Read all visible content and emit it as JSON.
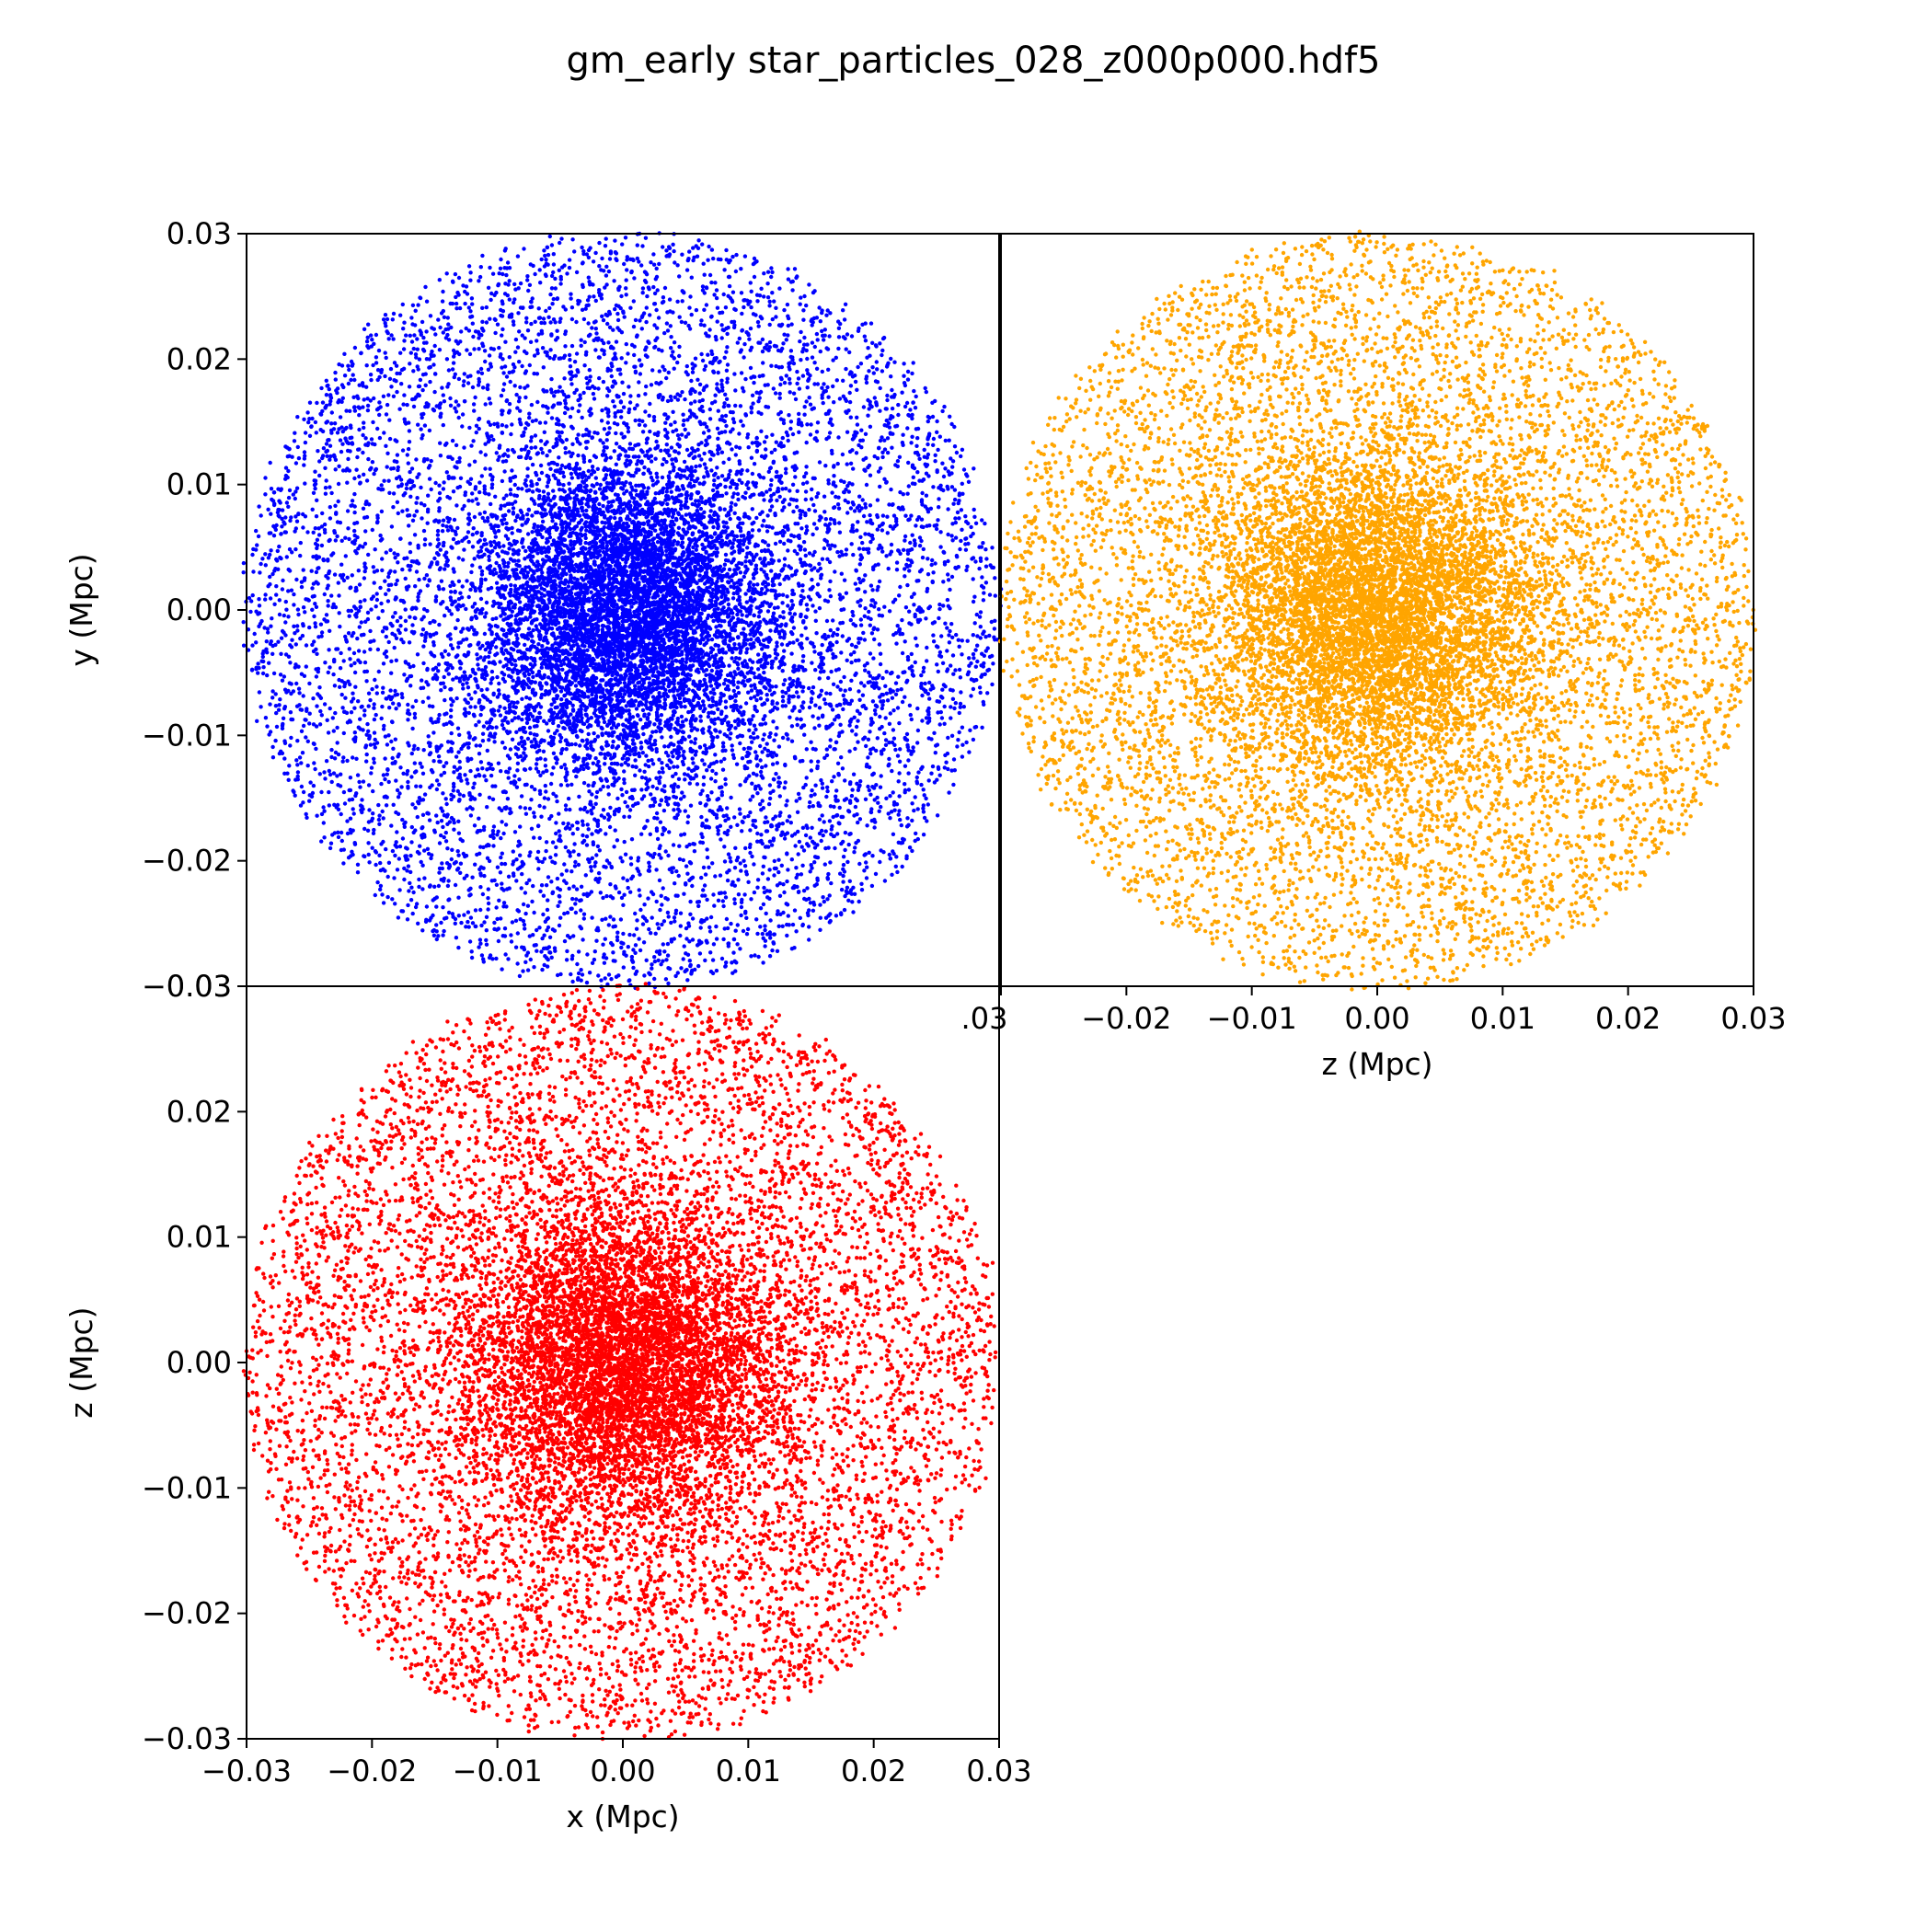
{
  "figure": {
    "title": "gm_early star_particles_028_z000p000.hdf5"
  },
  "chart_data": [
    {
      "type": "scatter",
      "panel": "top-left",
      "xlabel": "",
      "ylabel": "y (Mpc)",
      "xlim": [
        -0.03,
        0.03
      ],
      "ylim": [
        -0.03,
        0.03
      ],
      "x_ticks": [],
      "y_ticks": [
        "−0.03",
        "−0.02",
        "−0.01",
        "0.00",
        "0.01",
        "0.02",
        "0.03"
      ],
      "color": "#0000ff",
      "distribution": {
        "center": [
          0.0005,
          0.0
        ],
        "core_sigma": 0.006,
        "outer_radius": 0.03,
        "approx_points": 14000
      },
      "grid": false
    },
    {
      "type": "scatter",
      "panel": "top-right",
      "xlabel": "z (Mpc)",
      "ylabel": "",
      "xlim": [
        -0.03,
        0.03
      ],
      "ylim": [
        -0.03,
        0.03
      ],
      "x_ticks": [
        ".03",
        "−0.02",
        "−0.01",
        "0.00",
        "0.01",
        "0.02",
        "0.03"
      ],
      "y_ticks": [],
      "color": "#ffa500",
      "distribution": {
        "center": [
          0.0,
          0.0
        ],
        "core_sigma": 0.0065,
        "outer_radius": 0.03,
        "approx_points": 14000
      },
      "grid": false
    },
    {
      "type": "scatter",
      "panel": "bottom-left",
      "xlabel": "x (Mpc)",
      "ylabel": "z (Mpc)",
      "xlim": [
        -0.03,
        0.03
      ],
      "ylim": [
        -0.03,
        0.03
      ],
      "x_ticks": [
        "−0.03",
        "−0.02",
        "−0.01",
        "0.00",
        "0.01",
        "0.02",
        "0.03"
      ],
      "y_ticks": [
        "−0.03",
        "−0.02",
        "−0.01",
        "0.00",
        "0.01",
        "0.02",
        "0.03"
      ],
      "color": "#ff0000",
      "distribution": {
        "center": [
          0.0,
          0.0
        ],
        "core_sigma": 0.0062,
        "outer_radius": 0.03,
        "approx_points": 14000
      },
      "grid": false
    }
  ]
}
